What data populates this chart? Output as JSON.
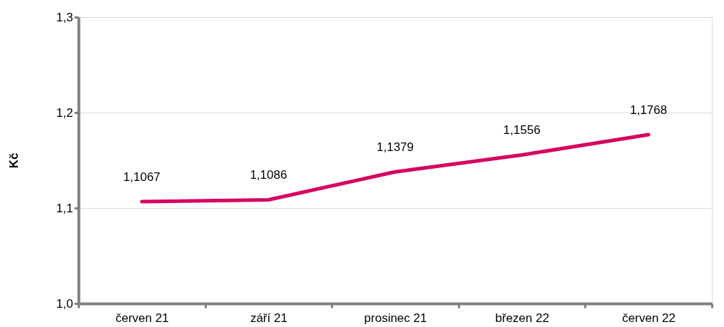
{
  "chart_data": {
    "type": "line",
    "ylabel": "Kč",
    "categories": [
      "červen 21",
      "září 21",
      "prosinec 21",
      "březen 22",
      "červen 22"
    ],
    "series": [
      {
        "color": "#d6005f",
        "values": [
          1.1067,
          1.1086,
          1.1379,
          1.1556,
          1.1768
        ],
        "value_labels": [
          "1,1067",
          "1,1086",
          "1,1379",
          "1,1556",
          "1,1768"
        ]
      }
    ],
    "ylim": [
      1.0,
      1.3
    ],
    "yticks": [
      {
        "value": 1.0,
        "label": "1,0"
      },
      {
        "value": 1.1,
        "label": "1,1"
      },
      {
        "value": 1.2,
        "label": "1,2"
      },
      {
        "value": 1.3,
        "label": "1,3"
      }
    ],
    "grid": "y",
    "marker": "none",
    "line_style": "solid"
  }
}
